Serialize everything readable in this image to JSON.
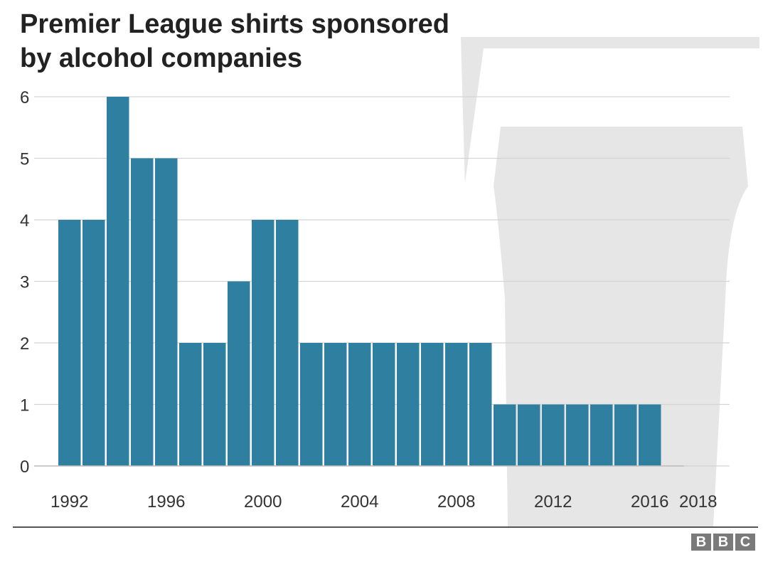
{
  "title_lines": [
    "Premier League shirts sponsored",
    "by alcohol companies"
  ],
  "logo_text": [
    "B",
    "B",
    "C"
  ],
  "colors": {
    "bar": "#2e7fa0",
    "grid": "#d4d4d4",
    "pint_glass": "#e6e6e6",
    "text": "#222222",
    "axis_text": "#333333"
  },
  "chart_data": {
    "type": "bar",
    "title": "Premier League shirts sponsored by alcohol companies",
    "xlabel": "",
    "ylabel": "",
    "categories": [
      1992,
      1993,
      1994,
      1995,
      1996,
      1997,
      1998,
      1999,
      2000,
      2001,
      2002,
      2003,
      2004,
      2005,
      2006,
      2007,
      2008,
      2009,
      2010,
      2011,
      2012,
      2013,
      2014,
      2015,
      2016,
      2017
    ],
    "values": [
      4,
      4,
      6,
      5,
      5,
      2,
      2,
      3,
      4,
      4,
      2,
      2,
      2,
      2,
      2,
      2,
      2,
      2,
      1,
      1,
      1,
      1,
      1,
      1,
      1,
      0
    ],
    "x_tick_labels": [
      "1992",
      "1996",
      "2000",
      "2004",
      "2008",
      "2012",
      "2016",
      "2018"
    ],
    "y_ticks": [
      0,
      1,
      2,
      3,
      4,
      5,
      6
    ],
    "ylim": [
      0,
      6
    ],
    "grid": true,
    "legend": "none",
    "background_image": "pint-glass"
  }
}
